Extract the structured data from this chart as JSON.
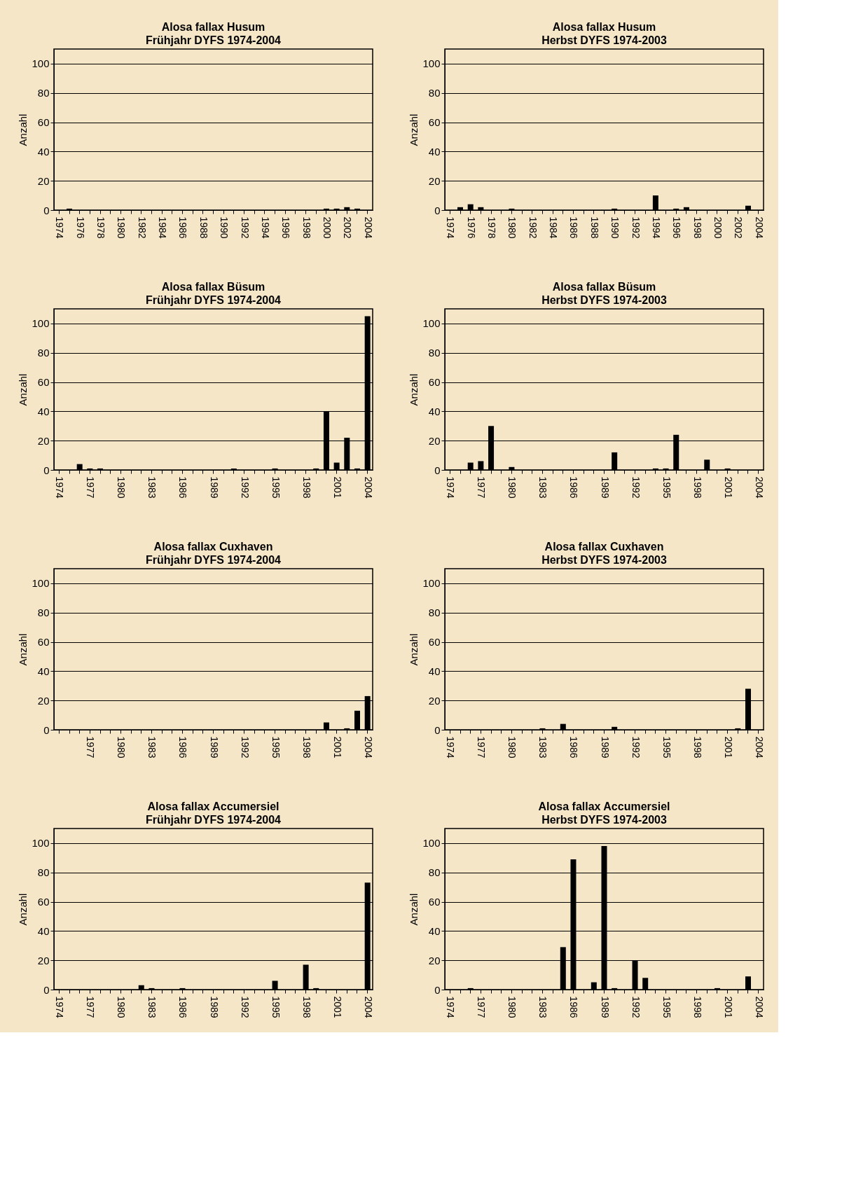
{
  "chart_data": [
    {
      "type": "bar",
      "title": "Alosa fallax Husum",
      "subtitle": "Frühjahr DYFS 1974-2004",
      "ylabel": "Anzahl",
      "categories": [
        "1974",
        null,
        "1976",
        null,
        "1978",
        null,
        "1980",
        null,
        "1982",
        null,
        "1984",
        null,
        "1986",
        null,
        "1988",
        null,
        "1990",
        null,
        "1992",
        null,
        "1994",
        null,
        "1996",
        null,
        "1998",
        null,
        "2000",
        null,
        "2002",
        null,
        "2004"
      ],
      "values": [
        0,
        1,
        0,
        0,
        0,
        0,
        0,
        0,
        0,
        0,
        0,
        0,
        0,
        0,
        0,
        0,
        0,
        0,
        0,
        0,
        0,
        0,
        0,
        0,
        0,
        0,
        1,
        1,
        2,
        1,
        0
      ],
      "color": "#000000",
      "ylim": [
        0,
        110
      ],
      "yticks": [
        0,
        20,
        40,
        60,
        80,
        100
      ],
      "grid": "y"
    },
    {
      "type": "bar",
      "title": "Alosa fallax Husum",
      "subtitle": "Herbst DYFS 1974-2003",
      "ylabel": "Anzahl",
      "categories": [
        "1974",
        null,
        "1976",
        null,
        "1978",
        null,
        "1980",
        null,
        "1982",
        null,
        "1984",
        null,
        "1986",
        null,
        "1988",
        null,
        "1990",
        null,
        "1992",
        null,
        "1994",
        null,
        "1996",
        null,
        "1998",
        null,
        "2000",
        null,
        "2002",
        null,
        "2004"
      ],
      "values": [
        0,
        2,
        4,
        2,
        0,
        0,
        1,
        0,
        0,
        0,
        0,
        0,
        0,
        0,
        0,
        0,
        1,
        0,
        0,
        0,
        10,
        0,
        1,
        2,
        0,
        0,
        0,
        0,
        0,
        3,
        0
      ],
      "color": "#000000",
      "ylim": [
        0,
        110
      ],
      "yticks": [
        0,
        20,
        40,
        60,
        80,
        100
      ],
      "grid": "y"
    },
    {
      "type": "bar",
      "title": "Alosa fallax Büsum",
      "subtitle": "Frühjahr DYFS 1974-2004",
      "ylabel": "Anzahl",
      "categories": [
        "1974",
        null,
        null,
        "1977",
        null,
        null,
        "1980",
        null,
        null,
        "1983",
        null,
        null,
        "1986",
        null,
        null,
        "1989",
        null,
        null,
        "1992",
        null,
        null,
        "1995",
        null,
        null,
        "1998",
        null,
        null,
        "2001",
        null,
        null,
        "2004"
      ],
      "values": [
        0,
        0,
        4,
        1,
        1,
        0,
        0,
        0,
        0,
        0,
        0,
        0,
        0,
        0,
        0,
        0,
        0,
        1,
        0,
        0,
        0,
        1,
        0,
        0,
        0,
        1,
        40,
        5,
        22,
        1,
        105
      ],
      "color": "#000000",
      "ylim": [
        0,
        110
      ],
      "yticks": [
        0,
        20,
        40,
        60,
        80,
        100
      ],
      "grid": "y"
    },
    {
      "type": "bar",
      "title": "Alosa fallax Büsum",
      "subtitle": "Herbst DYFS 1974-2003",
      "ylabel": "Anzahl",
      "categories": [
        "1974",
        null,
        null,
        "1977",
        null,
        null,
        "1980",
        null,
        null,
        "1983",
        null,
        null,
        "1986",
        null,
        null,
        "1989",
        null,
        null,
        "1992",
        null,
        null,
        "1995",
        null,
        null,
        "1998",
        null,
        null,
        "2001",
        null,
        null,
        "2004"
      ],
      "values": [
        0,
        0,
        5,
        6,
        30,
        0,
        2,
        0,
        0,
        0,
        0,
        0,
        0,
        0,
        0,
        0,
        12,
        0,
        0,
        0,
        1,
        1,
        24,
        0,
        0,
        7,
        0,
        1,
        0,
        0,
        0
      ],
      "color": "#000000",
      "ylim": [
        0,
        110
      ],
      "yticks": [
        0,
        20,
        40,
        60,
        80,
        100
      ],
      "grid": "y"
    },
    {
      "type": "bar",
      "title": "Alosa fallax Cuxhaven",
      "subtitle": "Frühjahr DYFS 1974-2004",
      "ylabel": "Anzahl",
      "categories": [
        null,
        null,
        null,
        "1977",
        null,
        null,
        "1980",
        null,
        null,
        "1983",
        null,
        null,
        "1986",
        null,
        null,
        "1989",
        null,
        null,
        "1992",
        null,
        null,
        "1995",
        null,
        null,
        "1998",
        null,
        null,
        "2001",
        null,
        null,
        "2004"
      ],
      "values": [
        0,
        0,
        0,
        0,
        0,
        0,
        0,
        0,
        0,
        0,
        0,
        0,
        0,
        0,
        0,
        0,
        0,
        0,
        0,
        0,
        0,
        0,
        0,
        0,
        0,
        0,
        5,
        0,
        1,
        13,
        23
      ],
      "color": "#000000",
      "ylim": [
        0,
        110
      ],
      "yticks": [
        0,
        20,
        40,
        60,
        80,
        100
      ],
      "grid": "y"
    },
    {
      "type": "bar",
      "title": "Alosa fallax Cuxhaven",
      "subtitle": "Herbst DYFS 1974-2003",
      "ylabel": "Anzahl",
      "categories": [
        "1974",
        null,
        null,
        "1977",
        null,
        null,
        "1980",
        null,
        null,
        "1983",
        null,
        null,
        "1986",
        null,
        null,
        "1989",
        null,
        null,
        "1992",
        null,
        null,
        "1995",
        null,
        null,
        "1998",
        null,
        null,
        "2001",
        null,
        null,
        "2004"
      ],
      "values": [
        0,
        0,
        0,
        0,
        0,
        0,
        0,
        0,
        0,
        1,
        0,
        4,
        0,
        0,
        0,
        0,
        2,
        0,
        0,
        0,
        0,
        0,
        0,
        0,
        0,
        0,
        0,
        0,
        1,
        28,
        0
      ],
      "color": "#000000",
      "ylim": [
        0,
        110
      ],
      "yticks": [
        0,
        20,
        40,
        60,
        80,
        100
      ],
      "grid": "y"
    },
    {
      "type": "bar",
      "title": "Alosa fallax Accumersiel",
      "subtitle": "Frühjahr DYFS 1974-2004",
      "ylabel": "Anzahl",
      "categories": [
        "1974",
        null,
        null,
        "1977",
        null,
        null,
        "1980",
        null,
        null,
        "1983",
        null,
        null,
        "1986",
        null,
        null,
        "1989",
        null,
        null,
        "1992",
        null,
        null,
        "1995",
        null,
        null,
        "1998",
        null,
        null,
        "2001",
        null,
        null,
        "2004"
      ],
      "values": [
        0,
        0,
        0,
        0,
        0,
        0,
        0,
        0,
        3,
        1,
        0,
        0,
        1,
        0,
        0,
        0,
        0,
        0,
        0,
        0,
        0,
        6,
        0,
        0,
        17,
        1,
        0,
        0,
        0,
        0,
        73
      ],
      "color": "#000000",
      "ylim": [
        0,
        110
      ],
      "yticks": [
        0,
        20,
        40,
        60,
        80,
        100
      ],
      "grid": "y"
    },
    {
      "type": "bar",
      "title": "Alosa fallax Accumersiel",
      "subtitle": "Herbst DYFS 1974-2003",
      "ylabel": "Anzahl",
      "categories": [
        "1974",
        null,
        null,
        "1977",
        null,
        null,
        "1980",
        null,
        null,
        "1983",
        null,
        null,
        "1986",
        null,
        null,
        "1989",
        null,
        null,
        "1992",
        null,
        null,
        "1995",
        null,
        null,
        "1998",
        null,
        null,
        "2001",
        null,
        null,
        "2004"
      ],
      "values": [
        0,
        0,
        1,
        0,
        0,
        0,
        0,
        0,
        0,
        0,
        0,
        29,
        89,
        0,
        5,
        98,
        1,
        0,
        20,
        8,
        0,
        0,
        0,
        0,
        0,
        0,
        1,
        0,
        0,
        9,
        0
      ],
      "color": "#000000",
      "ylim": [
        0,
        110
      ],
      "yticks": [
        0,
        20,
        40,
        60,
        80,
        100
      ],
      "grid": "y"
    }
  ]
}
